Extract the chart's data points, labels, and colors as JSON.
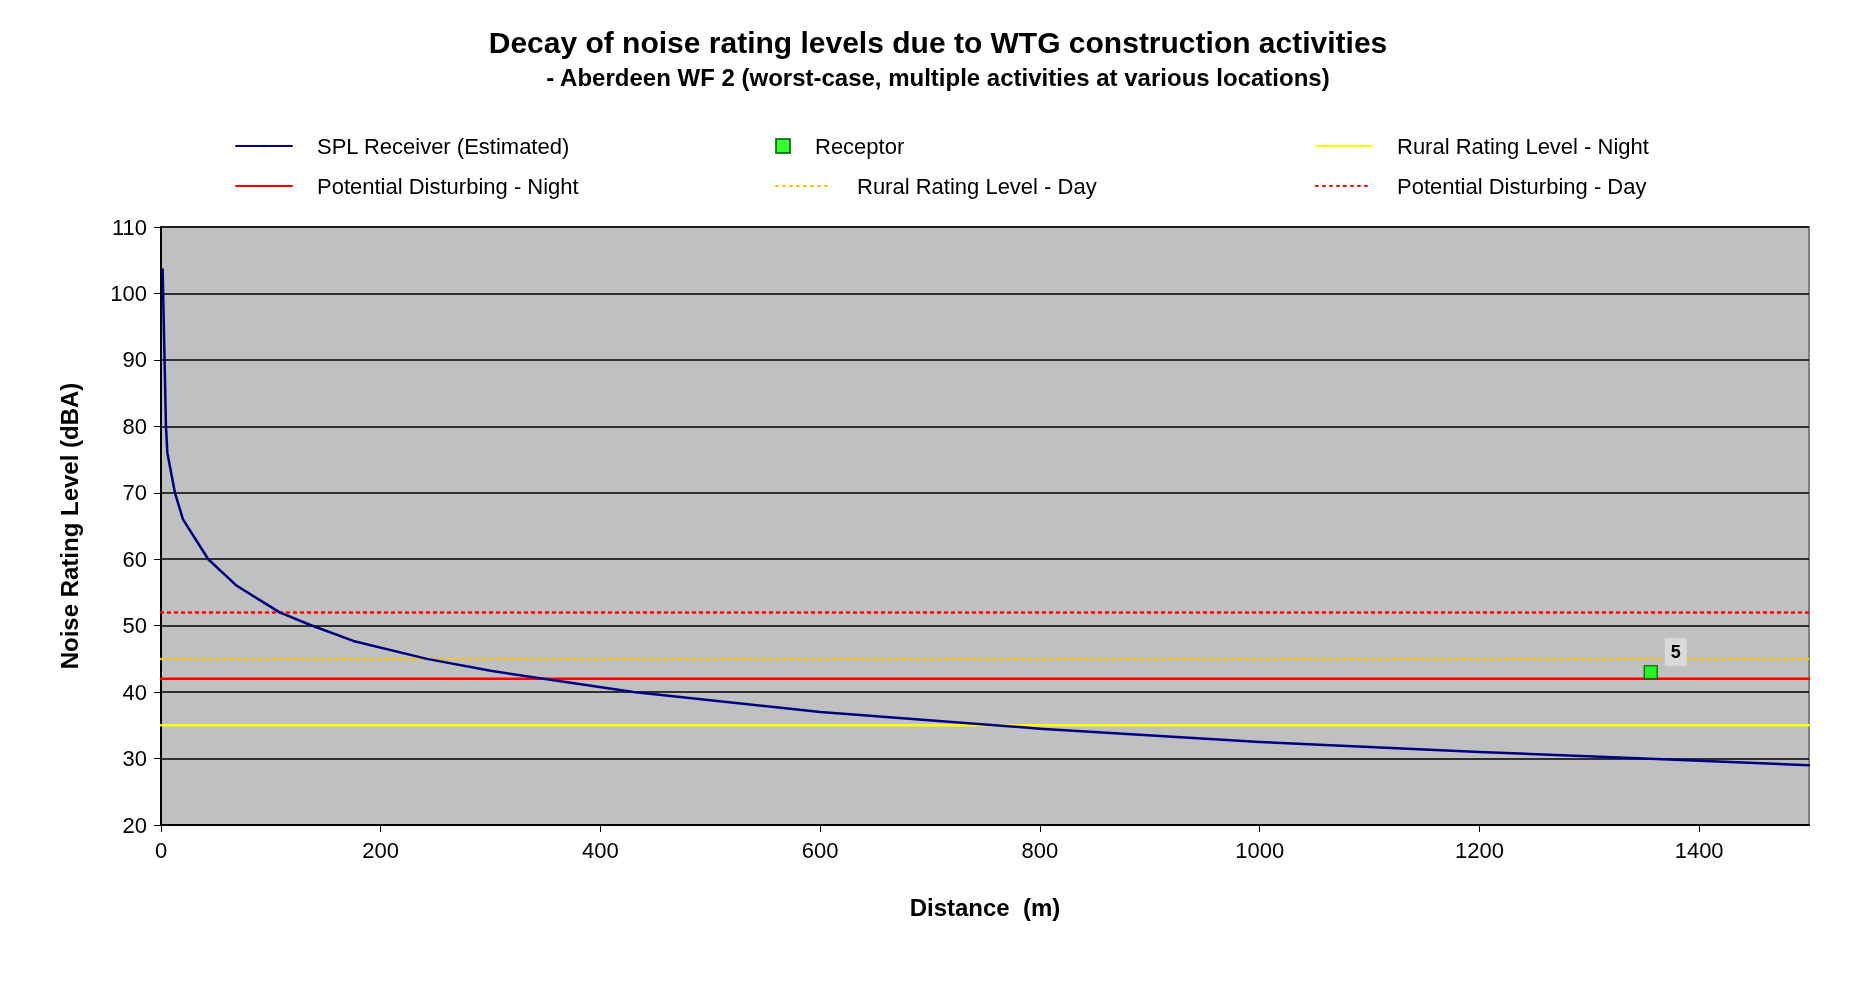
{
  "chart_data": {
    "type": "line",
    "title": "Decay of noise rating levels due to WTG construction activities",
    "subtitle": "- Aberdeen WF 2 (worst-case, multiple activities at various locations)",
    "xlabel": "Distance  (m)",
    "ylabel": "Noise Rating Level (dBA)",
    "xlim": [
      0,
      1500
    ],
    "xticks": [
      0,
      200,
      400,
      600,
      800,
      1000,
      1200,
      1400
    ],
    "ylim": [
      20,
      110
    ],
    "yticks": [
      20,
      30,
      40,
      50,
      60,
      70,
      80,
      90,
      100,
      110
    ],
    "annotations": [
      {
        "text": "5",
        "x": 1356,
        "y": 43
      }
    ],
    "grid": "y",
    "legend": "top",
    "marker": "none",
    "series": [
      {
        "name": "SPL Receiver (Estimated)",
        "color": "#000080",
        "x": [
          1.5,
          4.5,
          5.8,
          12.7,
          20,
          43,
          69,
          108,
          136,
          175,
          242,
          300,
          430,
          600,
          800,
          1000,
          1200,
          1350,
          1500
        ],
        "values": [
          103.6,
          80,
          76,
          70,
          66,
          60,
          56,
          52,
          50.1,
          47.7,
          45,
          43.2,
          40,
          37,
          34.5,
          32.5,
          31,
          30,
          29
        ]
      },
      {
        "name": "Receptor",
        "type": "scatter",
        "marker": "square",
        "color": "#00ff00",
        "x": [
          1356
        ],
        "values": [
          43
        ]
      },
      {
        "name": "Rural Rating Level - Night",
        "color": "#ffff00",
        "x": [
          0,
          1500
        ],
        "values": [
          35,
          35
        ]
      },
      {
        "name": "Potential Disturbing - Night",
        "color": "#ff0000",
        "x": [
          0,
          1500
        ],
        "values": [
          42,
          42
        ]
      },
      {
        "name": "Rural Rating Level - Day",
        "color": "#ffc000",
        "line_style": "dotted",
        "x": [
          0,
          1500
        ],
        "values": [
          45,
          45
        ]
      },
      {
        "name": "Potential Disturbing - Day",
        "color": "#ff0000",
        "line_style": "dotted",
        "x": [
          0,
          1500
        ],
        "values": [
          52,
          52
        ]
      }
    ]
  }
}
